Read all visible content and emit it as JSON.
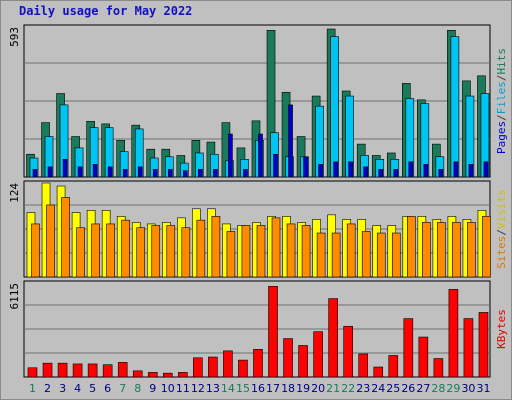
{
  "chart_data": {
    "type": "bar",
    "title": "Daily usage for May 2022",
    "categories": [
      "1",
      "2",
      "3",
      "4",
      "5",
      "6",
      "7",
      "8",
      "9",
      "10",
      "11",
      "12",
      "13",
      "14",
      "15",
      "16",
      "17",
      "18",
      "19",
      "20",
      "21",
      "22",
      "23",
      "24",
      "25",
      "26",
      "27",
      "28",
      "29",
      "30",
      "31"
    ],
    "weekend_days": [
      "1",
      "7",
      "8",
      "14",
      "15",
      "21",
      "22",
      "28",
      "29"
    ],
    "panels": [
      {
        "name": "pages-files-hits",
        "max_label": "593",
        "ylim": [
          0,
          593
        ],
        "legend": [
          "Pages",
          "/",
          "Files",
          "/",
          "Hits"
        ],
        "series": [
          {
            "name": "Hits",
            "color": "#1a7a5c",
            "values": [
              90,
              215,
              330,
              160,
              220,
              210,
              145,
              205,
              110,
              110,
              85,
              145,
              138,
              215,
              115,
              222,
              580,
              335,
              160,
              320,
              585,
              340,
              130,
              85,
              95,
              370,
              305,
              130,
              580,
              380,
              400
            ]
          },
          {
            "name": "Files",
            "color": "#00c4f2",
            "values": [
              75,
              160,
              285,
              115,
              195,
              195,
              100,
              190,
              75,
              80,
              55,
              95,
              90,
              65,
              70,
              145,
              175,
              80,
              80,
              280,
              555,
              320,
              85,
              70,
              70,
              310,
              290,
              80,
              555,
              320,
              330
            ]
          },
          {
            "name": "Pages",
            "color": "#0000d0",
            "values": [
              30,
              40,
              70,
              40,
              50,
              40,
              30,
              40,
              30,
              30,
              25,
              30,
              30,
              170,
              30,
              170,
              90,
              285,
              80,
              50,
              60,
              60,
              40,
              30,
              30,
              60,
              50,
              30,
              60,
              50,
              60
            ]
          }
        ]
      },
      {
        "name": "sites-visits",
        "max_label": "124",
        "ylim": [
          0,
          124
        ],
        "legend": [
          "Sites",
          "/",
          "Visits"
        ],
        "series": [
          {
            "name": "Visits",
            "color": "#ffff00",
            "values": [
              85,
              124,
              120,
              85,
              88,
              88,
              80,
              72,
              70,
              72,
              78,
              90,
              90,
              70,
              68,
              72,
              80,
              80,
              72,
              76,
              82,
              76,
              76,
              68,
              68,
              80,
              80,
              76,
              80,
              76,
              88
            ]
          },
          {
            "name": "Sites",
            "color": "#ff8c00",
            "values": [
              70,
              95,
              105,
              65,
              70,
              70,
              75,
              65,
              68,
              68,
              65,
              75,
              80,
              60,
              68,
              68,
              78,
              70,
              68,
              58,
              58,
              70,
              60,
              58,
              58,
              80,
              72,
              72,
              72,
              72,
              80
            ]
          }
        ]
      },
      {
        "name": "kbytes",
        "max_label": "6115",
        "ylim": [
          0,
          6115
        ],
        "legend": [
          "KBytes"
        ],
        "series": [
          {
            "name": "KBytes",
            "color": "#ff0000",
            "values": [
              600,
              900,
              900,
              850,
              850,
              800,
              950,
              400,
              300,
              250,
              300,
              1250,
              1300,
              1700,
              1100,
              1800,
              5900,
              2500,
              2050,
              2950,
              5100,
              3300,
              1500,
              650,
              1400,
              3800,
              2600,
              1200,
              5700,
              3800,
              4200
            ]
          }
        ]
      }
    ],
    "legend_colors": {
      "Pages": "#0000d0",
      "Files": "#00a0d0",
      "Hits": "#1a7a5c",
      "Sites": "#e07800",
      "Visits": "#d0c000",
      "KBytes": "#e00000",
      "slash": "#404040"
    },
    "tick_colors": {
      "weekday": "#000080",
      "weekend": "#1a7a5c"
    }
  }
}
